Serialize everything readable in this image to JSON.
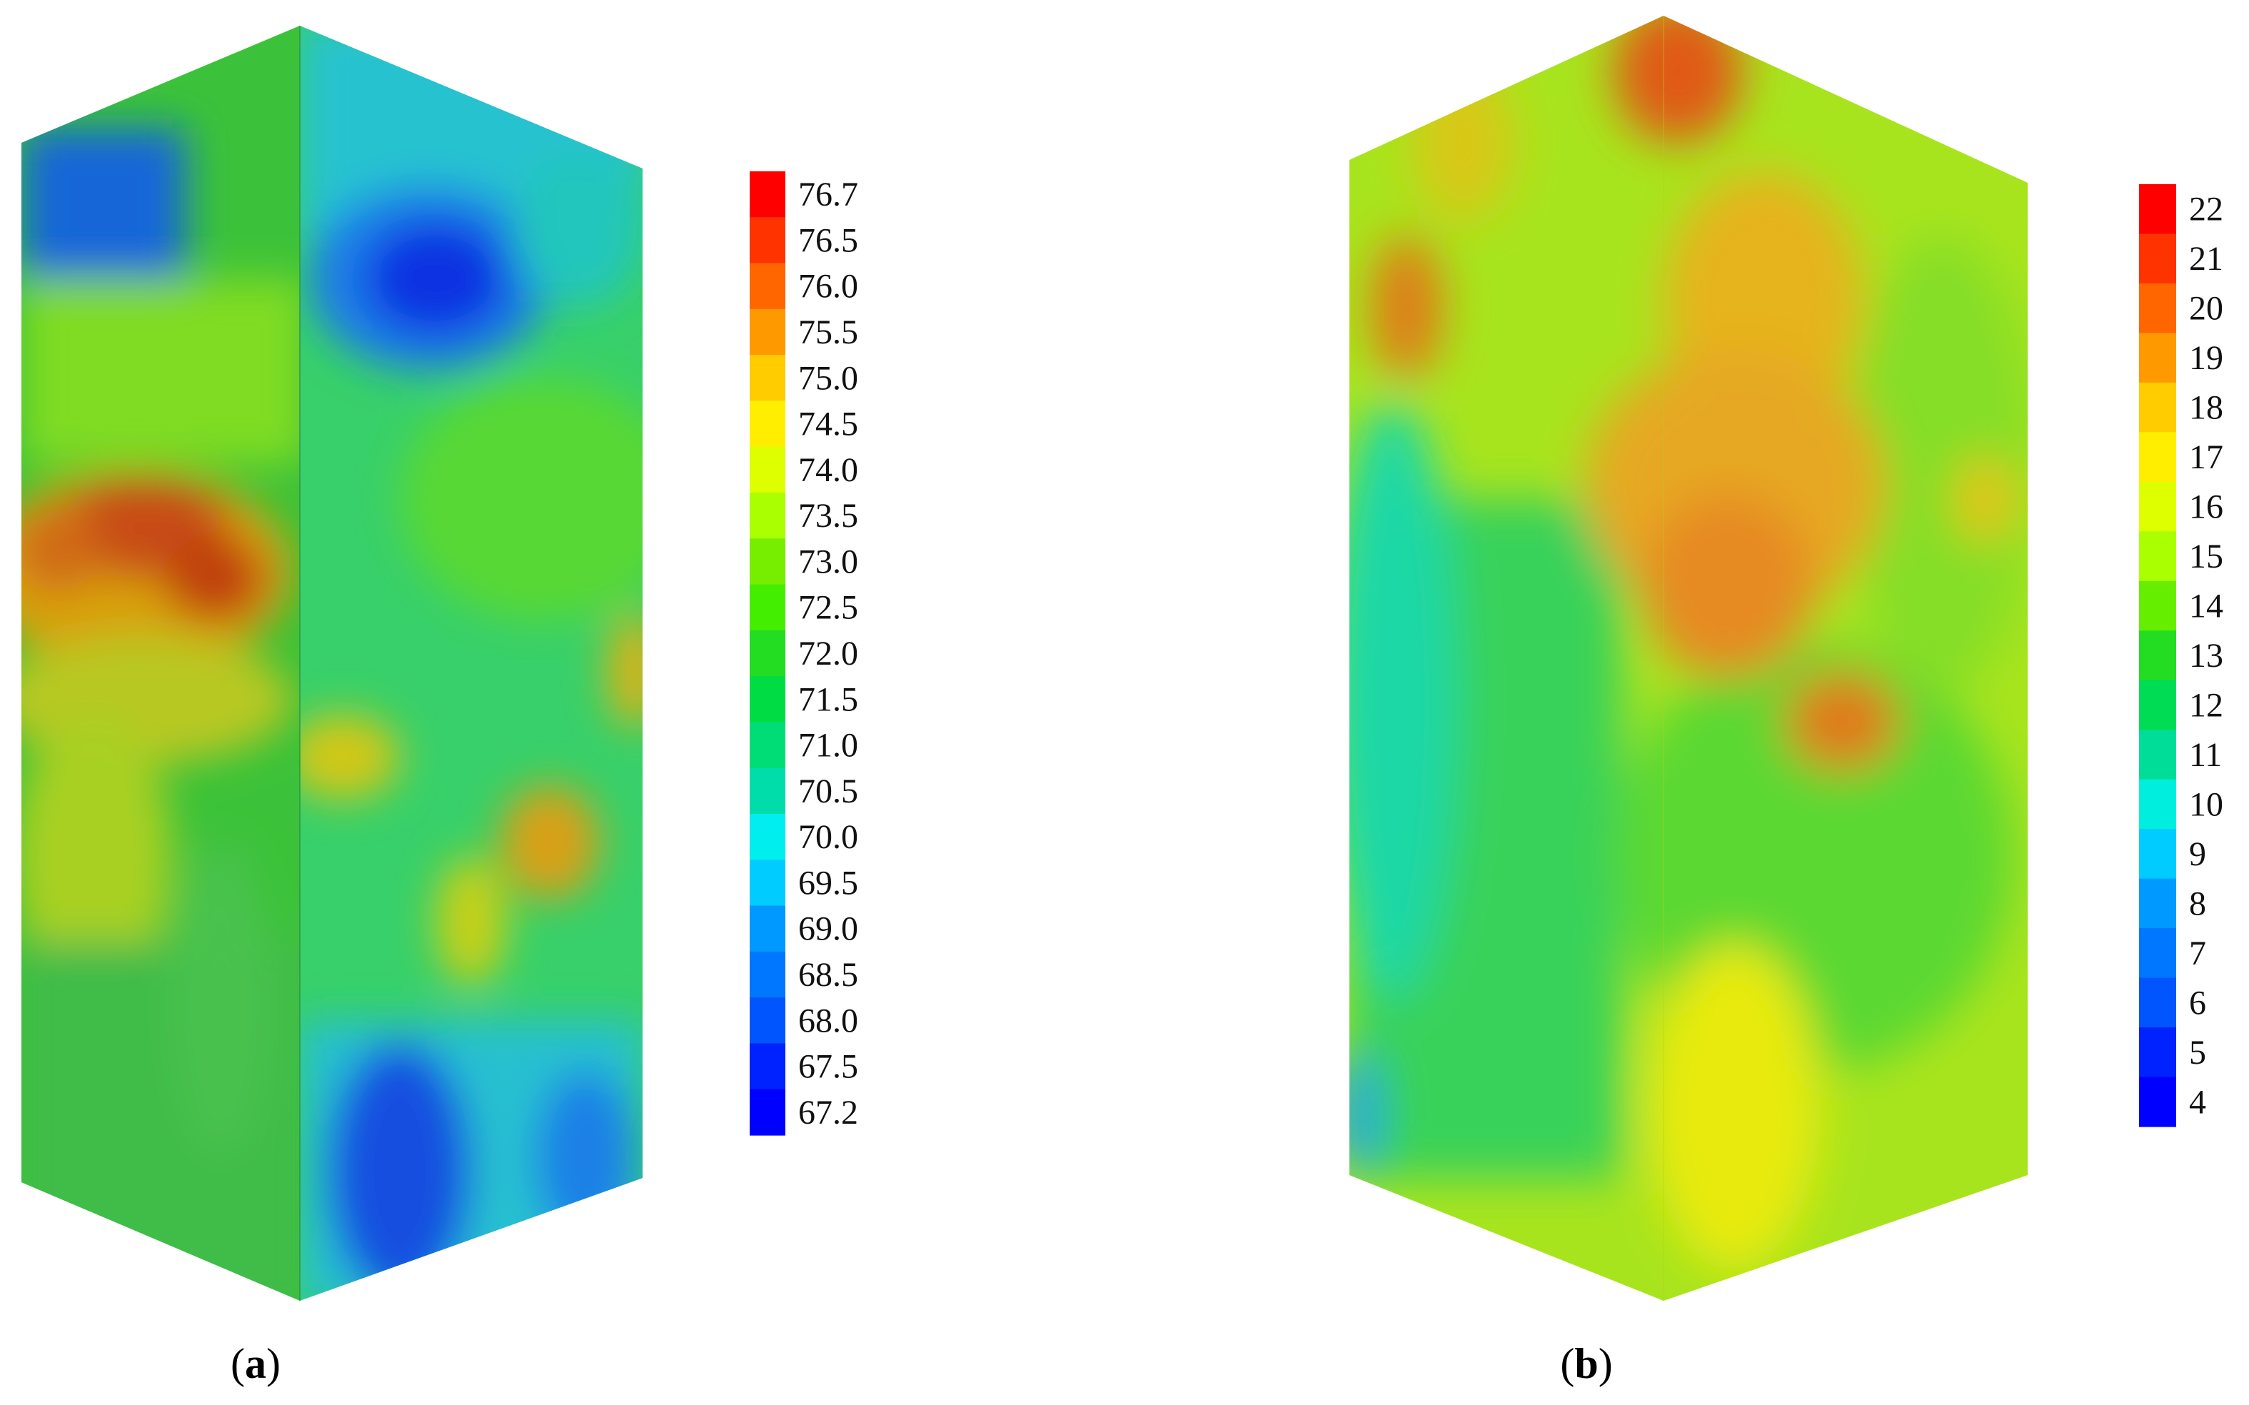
{
  "figure": {
    "panels": [
      {
        "id": "a",
        "label_open": "(",
        "label_letter": "a",
        "label_close": ")",
        "colorbar_ticks": [
          "76.7",
          "76.5",
          "76.0",
          "75.5",
          "75.0",
          "74.5",
          "74.0",
          "73.5",
          "73.0",
          "72.5",
          "72.0",
          "71.5",
          "71.0",
          "70.5",
          "70.0",
          "69.5",
          "69.0",
          "68.5",
          "68.0",
          "67.5",
          "67.2"
        ],
        "colorbar_colors": [
          "#ff0000",
          "#ff3300",
          "#ff6600",
          "#ff9900",
          "#ffcc00",
          "#ffee00",
          "#ddff00",
          "#aaff00",
          "#77ee00",
          "#44ee00",
          "#22dd22",
          "#00dd44",
          "#00dd77",
          "#00ddaa",
          "#00eeee",
          "#00ccff",
          "#0099ff",
          "#0077ff",
          "#0055ff",
          "#0022ff",
          "#0000ff"
        ]
      },
      {
        "id": "b",
        "label_open": "(",
        "label_letter": "b",
        "label_close": ")",
        "colorbar_ticks": [
          "22",
          "21",
          "20",
          "19",
          "18",
          "17",
          "16",
          "15",
          "14",
          "13",
          "12",
          "11",
          "10",
          "9",
          "8",
          "7",
          "6",
          "5",
          "4"
        ],
        "colorbar_colors": [
          "#ff0000",
          "#ff3300",
          "#ff6600",
          "#ff9900",
          "#ffcc00",
          "#ffee00",
          "#ddff00",
          "#aaff00",
          "#66ee00",
          "#22dd22",
          "#00dd55",
          "#00dd99",
          "#00eedd",
          "#00ccff",
          "#0099ff",
          "#0077ff",
          "#0055ff",
          "#0022ff",
          "#0000ff"
        ]
      }
    ]
  }
}
